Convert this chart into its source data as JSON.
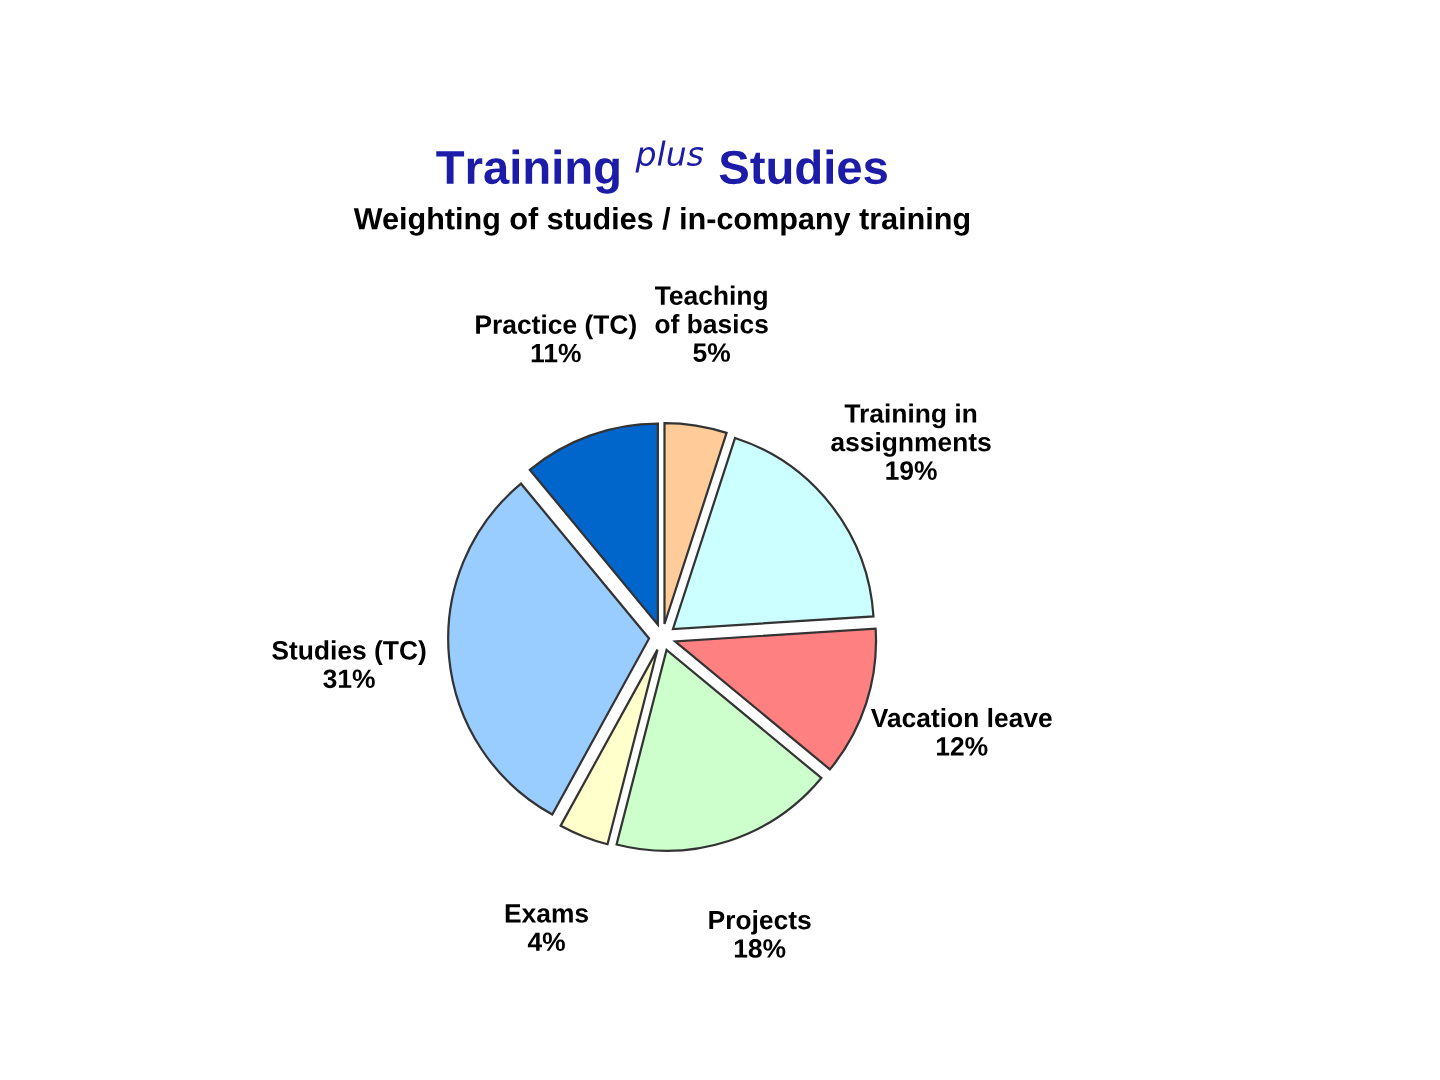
{
  "chart_data": {
    "type": "pie",
    "title": "Training $^{plus}$ Studies",
    "subtitle": "Weighting of studies / in-company training",
    "categories": [
      "Teaching\nof basics",
      "Training in\nassignments",
      "Vacation leave",
      "Projects",
      "Exams",
      "Studies (TC)",
      "Practice (TC)"
    ],
    "values": [
      5,
      19,
      12,
      18,
      4,
      31,
      11
    ],
    "value_labels": [
      "5%",
      "19%",
      "12%",
      "18%",
      "4%",
      "31%",
      "11%"
    ],
    "colors": [
      "#ffcc99",
      "#ccffff",
      "#ff8080",
      "#ccffcc",
      "#ffffcc",
      "#99ccff",
      "#0066cc"
    ]
  }
}
